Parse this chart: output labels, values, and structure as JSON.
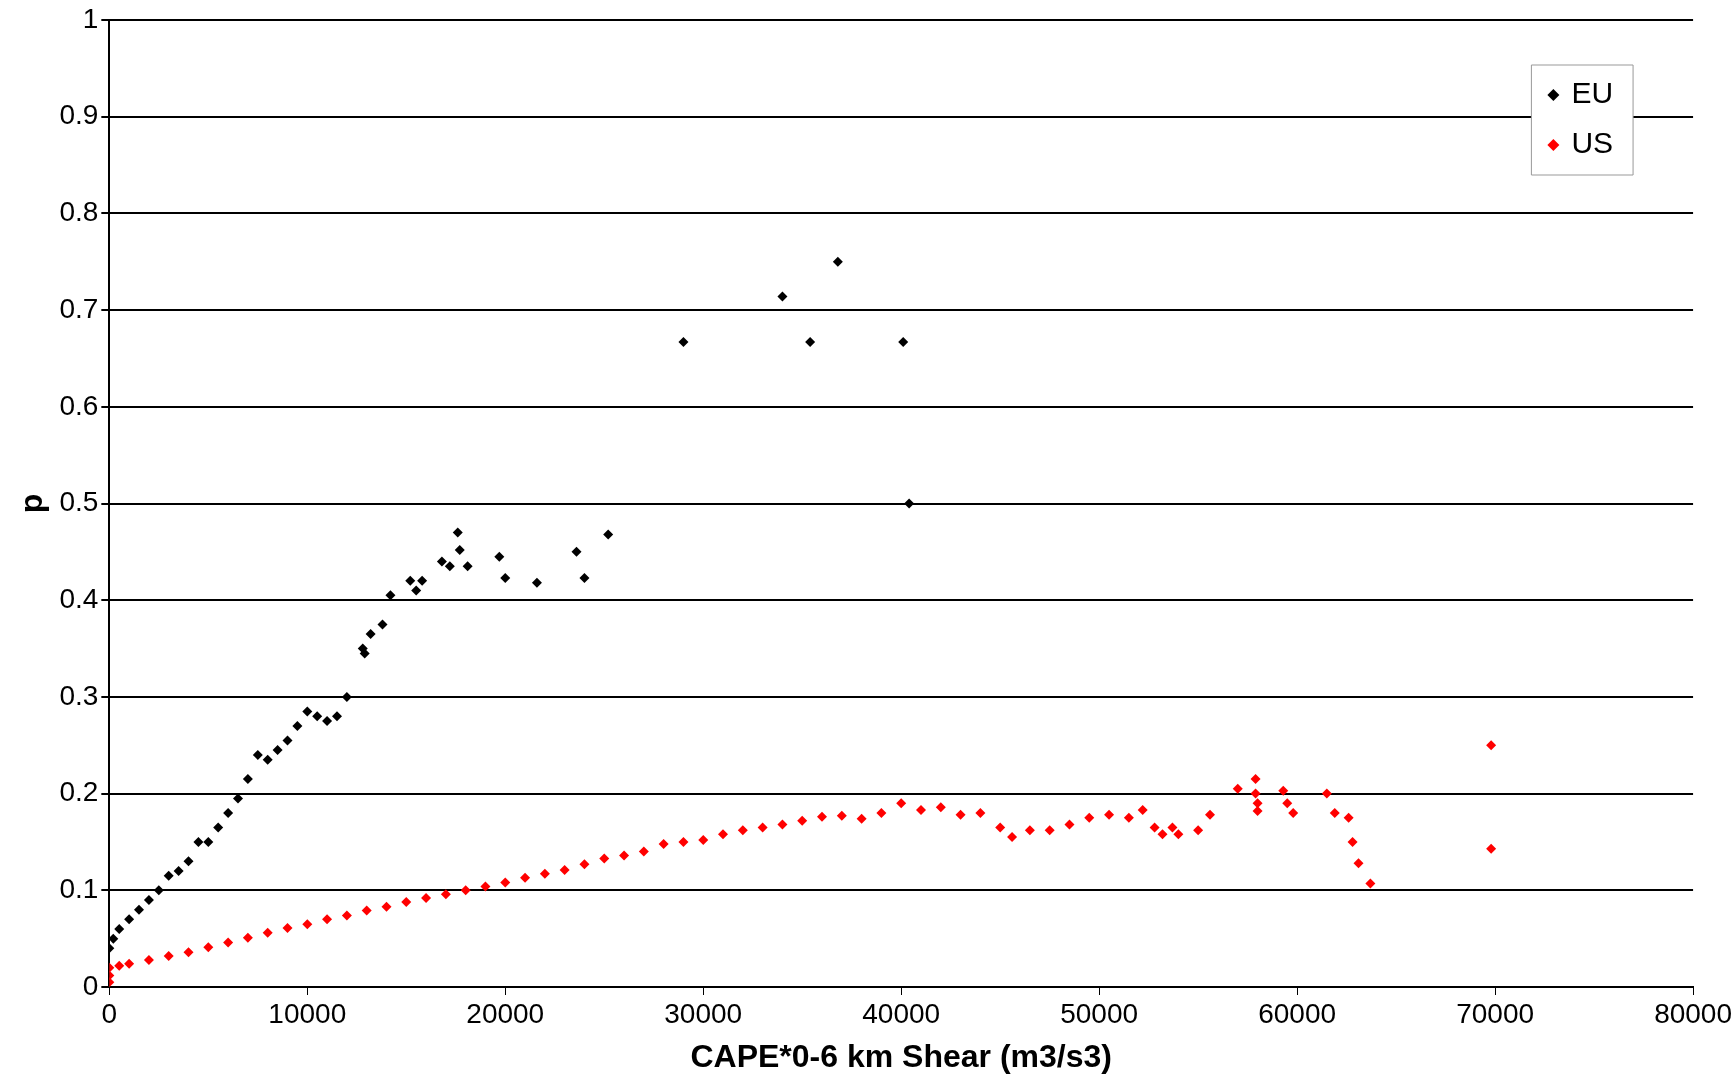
{
  "chart_data": {
    "type": "scatter",
    "xlabel": "CAPE*0-6 km Shear (m3/s3)",
    "ylabel": "p",
    "xlim": [
      0,
      80000
    ],
    "xticks": [
      0,
      10000,
      20000,
      30000,
      40000,
      50000,
      60000,
      70000,
      80000
    ],
    "ylim": [
      0,
      1
    ],
    "yticks": [
      0,
      0.1,
      0.2,
      0.3,
      0.4,
      0.5,
      0.6,
      0.7,
      0.8,
      0.9,
      1
    ],
    "grid": "y",
    "legend": "top right",
    "marker": "diamond",
    "series": [
      {
        "name": "EU",
        "color": "#000000",
        "x": [
          0,
          200,
          500,
          1000,
          1500,
          2000,
          2500,
          3000,
          3500,
          4000,
          4500,
          5000,
          5500,
          6000,
          6500,
          7000,
          7500,
          8000,
          8500,
          9000,
          9500,
          10000,
          10500,
          11000,
          11500,
          12000,
          12800,
          12900,
          13200,
          13800,
          14200,
          15200,
          15500,
          15800,
          16800,
          17200,
          17600,
          17700,
          18100,
          19700,
          20000,
          21600,
          23600,
          24000,
          25200,
          29000,
          34000,
          35400,
          36800,
          40100,
          40400
        ],
        "values": [
          0.04,
          0.05,
          0.06,
          0.07,
          0.08,
          0.09,
          0.1,
          0.115,
          0.12,
          0.13,
          0.15,
          0.15,
          0.165,
          0.18,
          0.195,
          0.215,
          0.24,
          0.235,
          0.245,
          0.255,
          0.27,
          0.285,
          0.28,
          0.275,
          0.28,
          0.3,
          0.35,
          0.345,
          0.365,
          0.375,
          0.405,
          0.42,
          0.41,
          0.42,
          0.44,
          0.435,
          0.47,
          0.452,
          0.435,
          0.445,
          0.423,
          0.418,
          0.45,
          0.423,
          0.468,
          0.667,
          0.714,
          0.667,
          0.75,
          0.667,
          0.5
        ]
      },
      {
        "name": "US",
        "color": "#ff0000",
        "x": [
          0,
          0,
          0,
          500,
          1000,
          2000,
          3000,
          4000,
          5000,
          6000,
          7000,
          8000,
          9000,
          10000,
          11000,
          12000,
          13000,
          14000,
          15000,
          16000,
          17000,
          18000,
          19000,
          20000,
          21000,
          22000,
          23000,
          24000,
          25000,
          26000,
          27000,
          28000,
          29000,
          30000,
          31000,
          32000,
          33000,
          34000,
          35000,
          36000,
          37000,
          38000,
          39000,
          40000,
          41000,
          42000,
          43000,
          44000,
          45000,
          45600,
          46500,
          47500,
          48500,
          49500,
          50500,
          51500,
          52200,
          52800,
          53200,
          53700,
          54000,
          55000,
          55600,
          57000,
          57900,
          57900,
          58000,
          58000,
          59300,
          59500,
          59800,
          61500,
          61900,
          62600,
          62800,
          63100,
          63700,
          69800,
          69800
        ],
        "values": [
          0.005,
          0.012,
          0.02,
          0.022,
          0.024,
          0.028,
          0.032,
          0.036,
          0.041,
          0.046,
          0.051,
          0.056,
          0.061,
          0.065,
          0.07,
          0.074,
          0.079,
          0.083,
          0.088,
          0.092,
          0.096,
          0.1,
          0.104,
          0.108,
          0.113,
          0.117,
          0.121,
          0.127,
          0.133,
          0.136,
          0.14,
          0.148,
          0.15,
          0.152,
          0.158,
          0.162,
          0.165,
          0.168,
          0.172,
          0.176,
          0.177,
          0.174,
          0.18,
          0.19,
          0.183,
          0.186,
          0.178,
          0.18,
          0.165,
          0.155,
          0.162,
          0.162,
          0.168,
          0.175,
          0.178,
          0.175,
          0.183,
          0.165,
          0.158,
          0.165,
          0.158,
          0.162,
          0.178,
          0.205,
          0.215,
          0.2,
          0.19,
          0.182,
          0.203,
          0.19,
          0.18,
          0.2,
          0.18,
          0.175,
          0.15,
          0.128,
          0.107,
          0.25,
          0.143
        ]
      }
    ]
  }
}
